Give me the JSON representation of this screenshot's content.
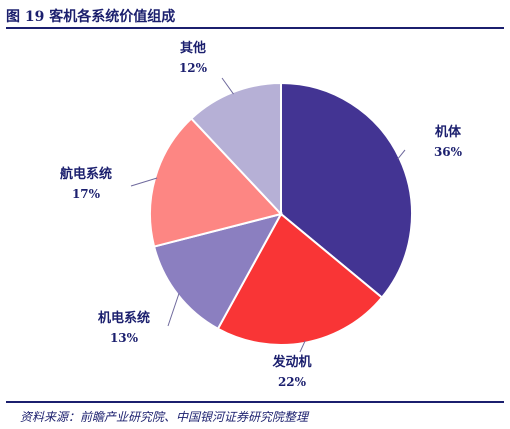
{
  "title": "图 19 客机各系统价值组成",
  "source": "资料来源：前瞻产业研究院、中国银河证券研究院整理",
  "chart_data": {
    "type": "pie",
    "title": "图 19 客机各系统价值组成",
    "slices": [
      {
        "label": "机体",
        "value": 36,
        "value_label": "36%",
        "color": "#433493"
      },
      {
        "label": "发动机",
        "value": 22,
        "value_label": "22%",
        "color": "#f93536"
      },
      {
        "label": "机电系统",
        "value": 13,
        "value_label": "13%",
        "color": "#8b7fc0"
      },
      {
        "label": "航电系统",
        "value": 17,
        "value_label": "17%",
        "color": "#fd8683"
      },
      {
        "label": "其他",
        "value": 12,
        "value_label": "12%",
        "color": "#b6b0d6"
      }
    ],
    "start_angle_deg": 0,
    "direction": "clockwise",
    "legend": "none"
  }
}
